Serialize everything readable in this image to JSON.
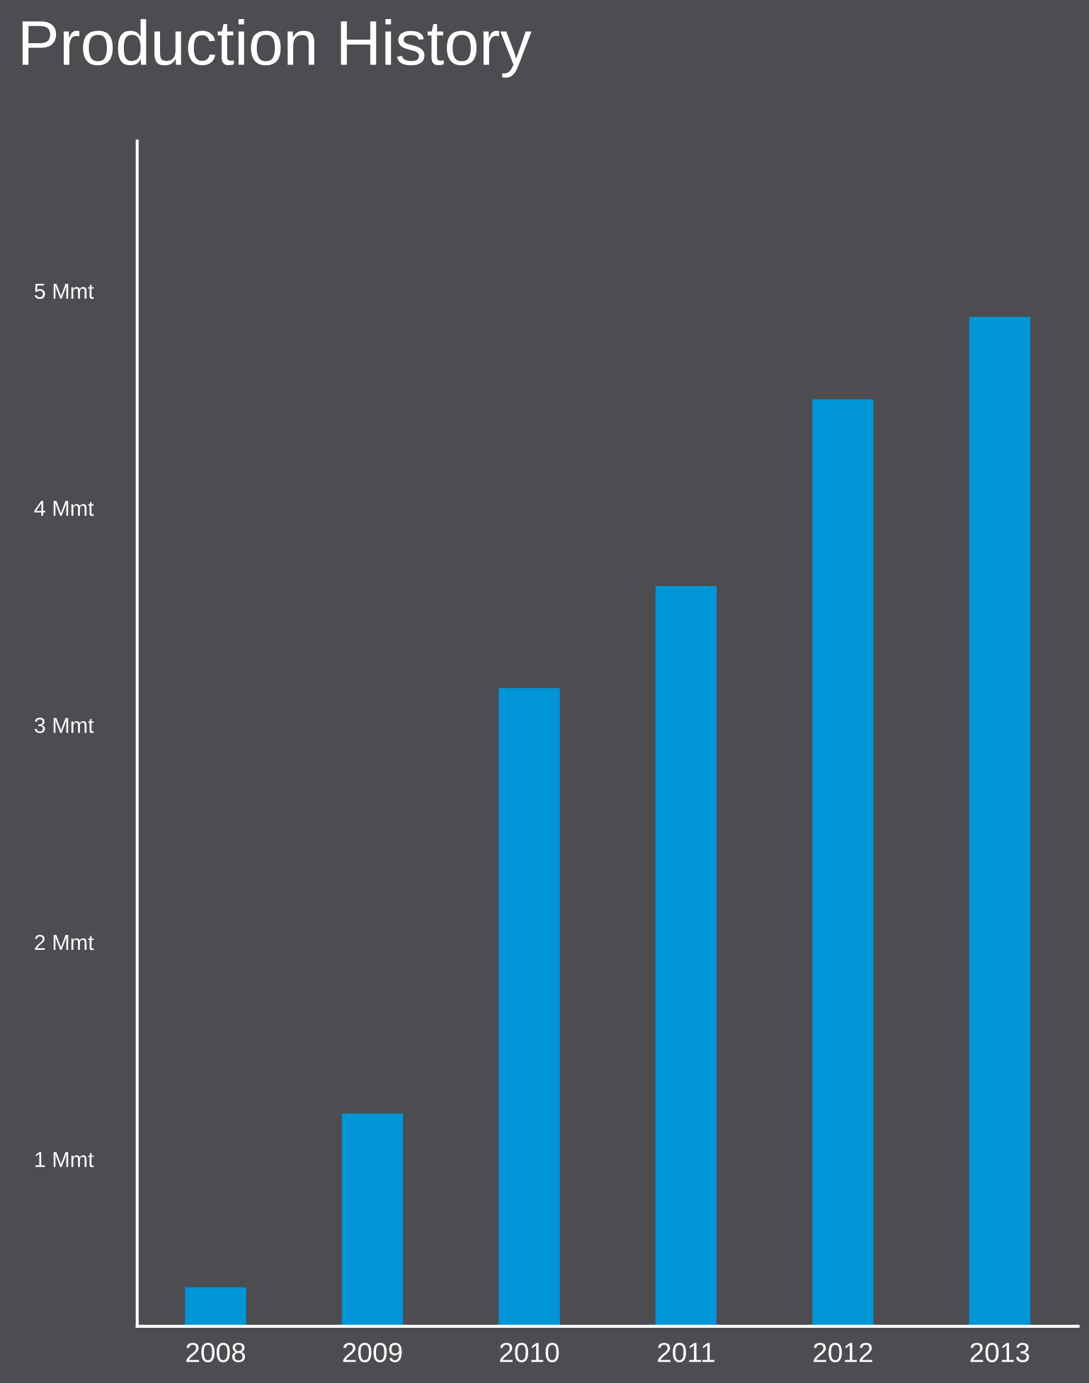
{
  "chart_data": {
    "type": "bar",
    "title": "Production History",
    "categories": [
      "2008",
      "2009",
      "2010",
      "2011",
      "2012",
      "2013"
    ],
    "values": [
      0.41,
      1.21,
      3.17,
      3.64,
      4.5,
      4.88
    ],
    "color": "#0095d6",
    "ylim": [
      0.23,
      5.69
    ],
    "yticks": [
      {
        "value": 1,
        "label": "1 Mmt"
      },
      {
        "value": 2,
        "label": "2 Mmt"
      },
      {
        "value": 3,
        "label": "3 Mmt"
      },
      {
        "value": 4,
        "label": "4 Mmt"
      },
      {
        "value": 5,
        "label": "5 Mmt"
      }
    ],
    "grid": false,
    "legend": false
  }
}
